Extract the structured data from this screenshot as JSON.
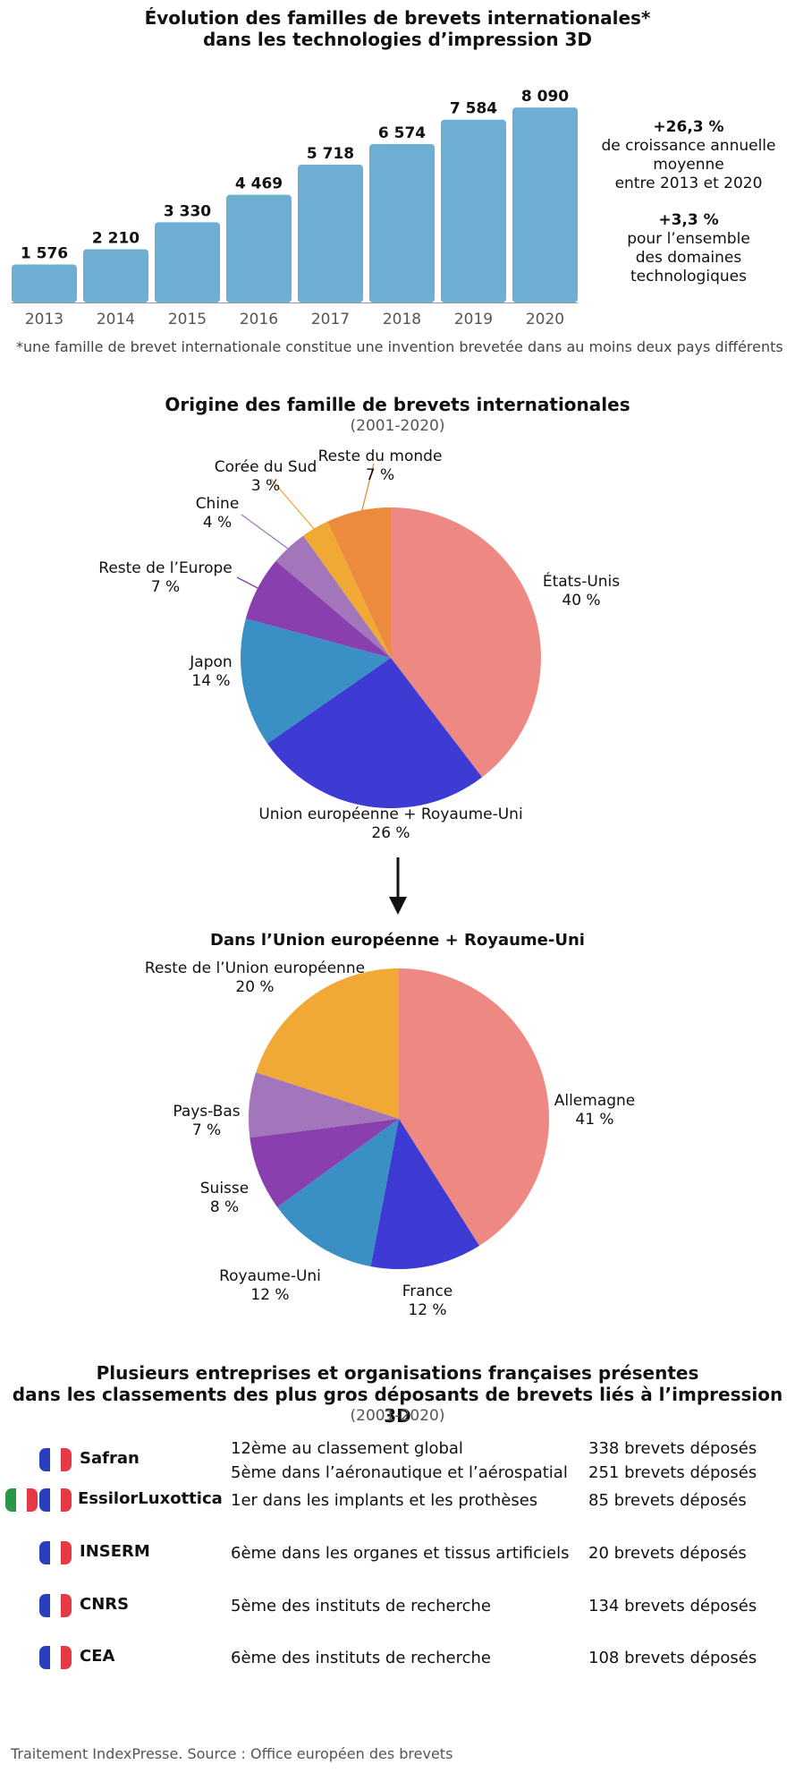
{
  "header": {
    "title_line1": "Évolution des familles de brevets internationales*",
    "title_line2": "dans les technologies d’impression 3D"
  },
  "stats": [
    {
      "value": "+26,3 %",
      "lines": [
        "de croissance annuelle",
        "moyenne",
        "entre 2013 et 2020"
      ]
    },
    {
      "value": "+3,3 %",
      "lines": [
        "pour l’ensemble",
        "des domaines",
        "technologiques"
      ]
    }
  ],
  "footnote": "*une famille de brevet internationale constitue une invention brevetée dans au moins deux pays différents",
  "pie1_header": {
    "title": "Origine des famille de brevets internationales",
    "subtitle": "(2001-2020)"
  },
  "pie2_header": {
    "title": "Dans l’Union européenne + Royaume-Uni"
  },
  "colors": {
    "bar": "#6eaed3",
    "pink": "#ee8883",
    "blue": "#3d3bd3",
    "teal": "#3a90c4",
    "purple": "#8a3faf",
    "lilac": "#a375ba",
    "yellow": "#f1a935",
    "orange": "#ec8a3d"
  },
  "chart_data": [
    {
      "type": "bar",
      "title": "Évolution des familles de brevets internationales* dans les technologies d’impression 3D",
      "categories": [
        "2013",
        "2014",
        "2015",
        "2016",
        "2017",
        "2018",
        "2019",
        "2020"
      ],
      "values": [
        1576,
        2210,
        3330,
        4469,
        5718,
        6574,
        7584,
        8090
      ],
      "value_labels": [
        "1 576",
        "2 210",
        "3 330",
        "4 469",
        "5 718",
        "6 574",
        "7 584",
        "8 090"
      ],
      "ylim": [
        0,
        8800
      ],
      "grid": false,
      "color": "#6eaed3"
    },
    {
      "type": "pie",
      "title": "Origine des famille de brevets internationales",
      "subtitle": "(2001-2020)",
      "slices": [
        {
          "label": "États-Unis",
          "pct_text": "40 %",
          "value": 40,
          "color": "#ee8883"
        },
        {
          "label": "Union européenne + Royaume-Uni",
          "pct_text": "26 %",
          "value": 26,
          "color": "#3d3bd3"
        },
        {
          "label": "Japon",
          "pct_text": "14 %",
          "value": 14,
          "color": "#3a90c4"
        },
        {
          "label": "Reste de l’Europe",
          "pct_text": "7 %",
          "value": 7,
          "color": "#8a3faf"
        },
        {
          "label": "Chine",
          "pct_text": "4 %",
          "value": 4,
          "color": "#a375ba"
        },
        {
          "label": "Corée du Sud",
          "pct_text": "3 %",
          "value": 3,
          "color": "#f1a935"
        },
        {
          "label": "Reste du monde",
          "pct_text": "7 %",
          "value": 7,
          "color": "#ec8a3d"
        }
      ]
    },
    {
      "type": "pie",
      "title": "Dans l’Union européenne + Royaume-Uni",
      "slices": [
        {
          "label": "Allemagne",
          "pct_text": "41 %",
          "value": 41,
          "color": "#ee8883"
        },
        {
          "label": "France",
          "pct_text": "12 %",
          "value": 12,
          "color": "#3d3bd3"
        },
        {
          "label": "Royaume-Uni",
          "pct_text": "12 %",
          "value": 12,
          "color": "#3a90c4"
        },
        {
          "label": "Suisse",
          "pct_text": "8 %",
          "value": 8,
          "color": "#8a3faf"
        },
        {
          "label": "Pays-Bas",
          "pct_text": "7 %",
          "value": 7,
          "color": "#a375ba"
        },
        {
          "label": "Reste de l’Union européenne",
          "pct_text": "20 %",
          "value": 20,
          "color": "#f1a935"
        }
      ]
    },
    {
      "type": "table",
      "title_line1": "Plusieurs entreprises et organisations françaises présentes",
      "title_line2": "dans les classements des plus gros déposants de brevets liés à l’impression 3D",
      "subtitle": "(2001-2020)",
      "rows": [
        {
          "name": "Safran",
          "flags": [
            "fr"
          ],
          "ranks": [
            "12ème au classement global",
            "5ème dans l’aéronautique et l’aérospatial"
          ],
          "counts": [
            "338 brevets déposés",
            "251 brevets déposés"
          ]
        },
        {
          "name": "EssilorLuxottica",
          "flags": [
            "it",
            "fr"
          ],
          "ranks": [
            "1er dans les implants et les prothèses"
          ],
          "counts": [
            "85 brevets déposés"
          ]
        },
        {
          "name": "INSERM",
          "flags": [
            "fr"
          ],
          "ranks": [
            "6ème dans les organes et tissus artificiels"
          ],
          "counts": [
            "20 brevets déposés"
          ]
        },
        {
          "name": "CNRS",
          "flags": [
            "fr"
          ],
          "ranks": [
            "5ème des instituts de recherche"
          ],
          "counts": [
            "134 brevets déposés"
          ]
        },
        {
          "name": "CEA",
          "flags": [
            "fr"
          ],
          "ranks": [
            "6ème des instituts de recherche"
          ],
          "counts": [
            "108 brevets déposés"
          ]
        }
      ]
    }
  ],
  "footer": {
    "source": "Traitement IndexPresse. Source :  Office européen des brevets"
  }
}
